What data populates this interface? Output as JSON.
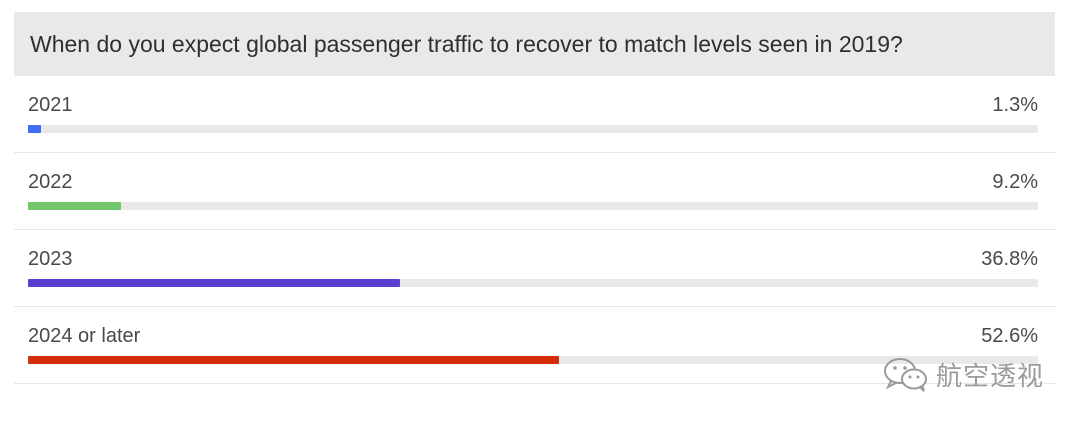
{
  "poll": {
    "question": "When do you expect global passenger traffic to recover to match levels seen in 2019?"
  },
  "chart_data": {
    "type": "bar",
    "orientation": "horizontal",
    "title": "When do you expect global passenger traffic to recover to match levels seen in 2019?",
    "categories": [
      "2021",
      "2022",
      "2023",
      "2024 or later"
    ],
    "values": [
      1.3,
      9.2,
      36.8,
      52.6
    ],
    "value_labels": [
      "1.3%",
      "9.2%",
      "36.8%",
      "52.6%"
    ],
    "colors": [
      "#3d6ef5",
      "#72c86a",
      "#5b3fd0",
      "#d42d0a"
    ],
    "track_color": "#e9e9ea",
    "xlim": [
      0,
      100
    ],
    "grid": false,
    "legend": "none"
  },
  "watermark": {
    "icon": "wechat-icon",
    "text": "航空透视"
  }
}
